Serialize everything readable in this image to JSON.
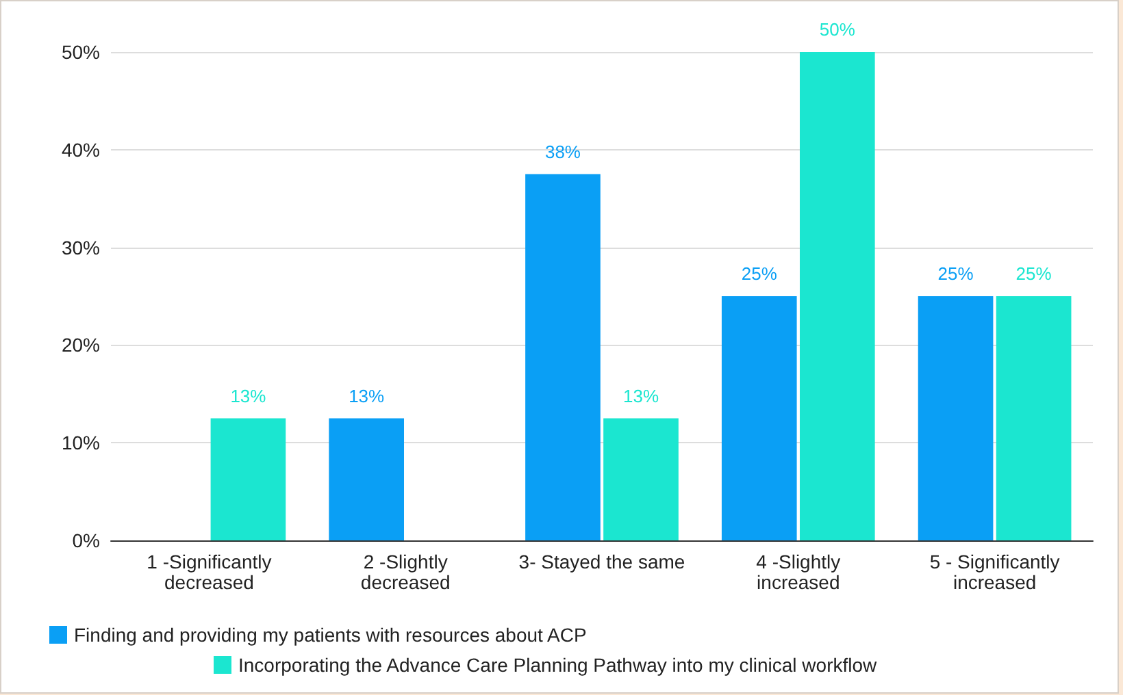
{
  "chart_data": {
    "type": "bar",
    "categories": [
      "1 -Significantly\ndecreased",
      "2 -Slightly\ndecreased",
      "3- Stayed the same",
      "4 -Slightly\nincreased",
      "5 - Significantly\nincreased"
    ],
    "series": [
      {
        "name": "Finding and providing my patients with resources about ACP",
        "color": "#0a9ff5",
        "values": [
          null,
          12.5,
          37.5,
          25,
          25
        ],
        "value_labels": [
          null,
          "13%",
          "38%",
          "25%",
          "25%"
        ]
      },
      {
        "name": "Incorporating the Advance Care Planning Pathway into my clinical workflow",
        "color": "#1be6d0",
        "values": [
          12.5,
          null,
          12.5,
          50,
          25
        ],
        "value_labels": [
          "13%",
          null,
          "13%",
          "50%",
          "25%"
        ]
      }
    ],
    "ylim": [
      0,
      50
    ],
    "yticks": [
      {
        "value": 0,
        "label": "0%"
      },
      {
        "value": 10,
        "label": "10%"
      },
      {
        "value": 20,
        "label": "20%"
      },
      {
        "value": 30,
        "label": "30%"
      },
      {
        "value": 40,
        "label": "40%"
      },
      {
        "value": 50,
        "label": "50%"
      }
    ],
    "grid": "y",
    "legend": "bottom"
  }
}
